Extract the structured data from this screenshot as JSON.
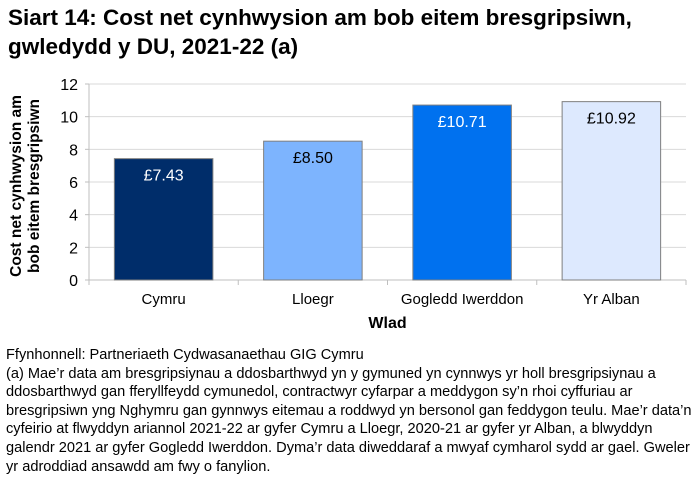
{
  "chart_data": {
    "type": "bar",
    "title": "Siart 14: Cost net cynhwysion am bob eitem bresgripsiwn, gwledydd y DU, 2021-22 (a)",
    "xlabel": "Wlad",
    "ylabel": "Cost net cynhwysion am bob eitem bresgripsiwn",
    "ylabel_lines": [
      "Cost net cynhwysion am",
      "bob eitem bresgripsiwn"
    ],
    "categories": [
      "Cymru",
      "Lloegr",
      "Gogledd Iwerddon",
      "Yr Alban"
    ],
    "values": [
      7.43,
      8.5,
      10.71,
      10.92
    ],
    "data_labels": [
      "£7.43",
      "£8.50",
      "£10.71",
      "£10.92"
    ],
    "colors": [
      "#002d6a",
      "#7db4fe",
      "#0071ef",
      "#dde9fe"
    ],
    "label_colors": [
      "#ffffff",
      "#000000",
      "#ffffff",
      "#000000"
    ],
    "ylim": [
      0,
      12
    ],
    "yticks": [
      0,
      2,
      4,
      6,
      8,
      10,
      12
    ],
    "grid": true,
    "legend": "none"
  },
  "notes": {
    "source": "Ffynhonnell: Partneriaeth Cydwasanaethau GIG Cymru",
    "footnote": "(a) Mae’r data am bresgripsiynau a ddosbarthwyd yn y gymuned yn cynnwys yr holl bresgripsiynau a ddosbarthwyd gan fferyllfeydd cymunedol, contractwyr cyfarpar a meddygon sy’n rhoi cyffuriau ar bresgripsiwn yng Nghymru gan gynnwys eitemau a roddwyd yn bersonol gan feddygon teulu. Mae’r data’n cyfeirio at flwyddyn ariannol 2021-22 ar gyfer Cymru a Lloegr, 2020-21 ar gyfer yr Alban, a blwyddyn galendr 2021 ar gyfer Gogledd Iwerddon. Dyma’r data diweddaraf a mwyaf cymharol sydd ar gael. Gweler yr adroddiad ansawdd am fwy o fanylion."
  }
}
